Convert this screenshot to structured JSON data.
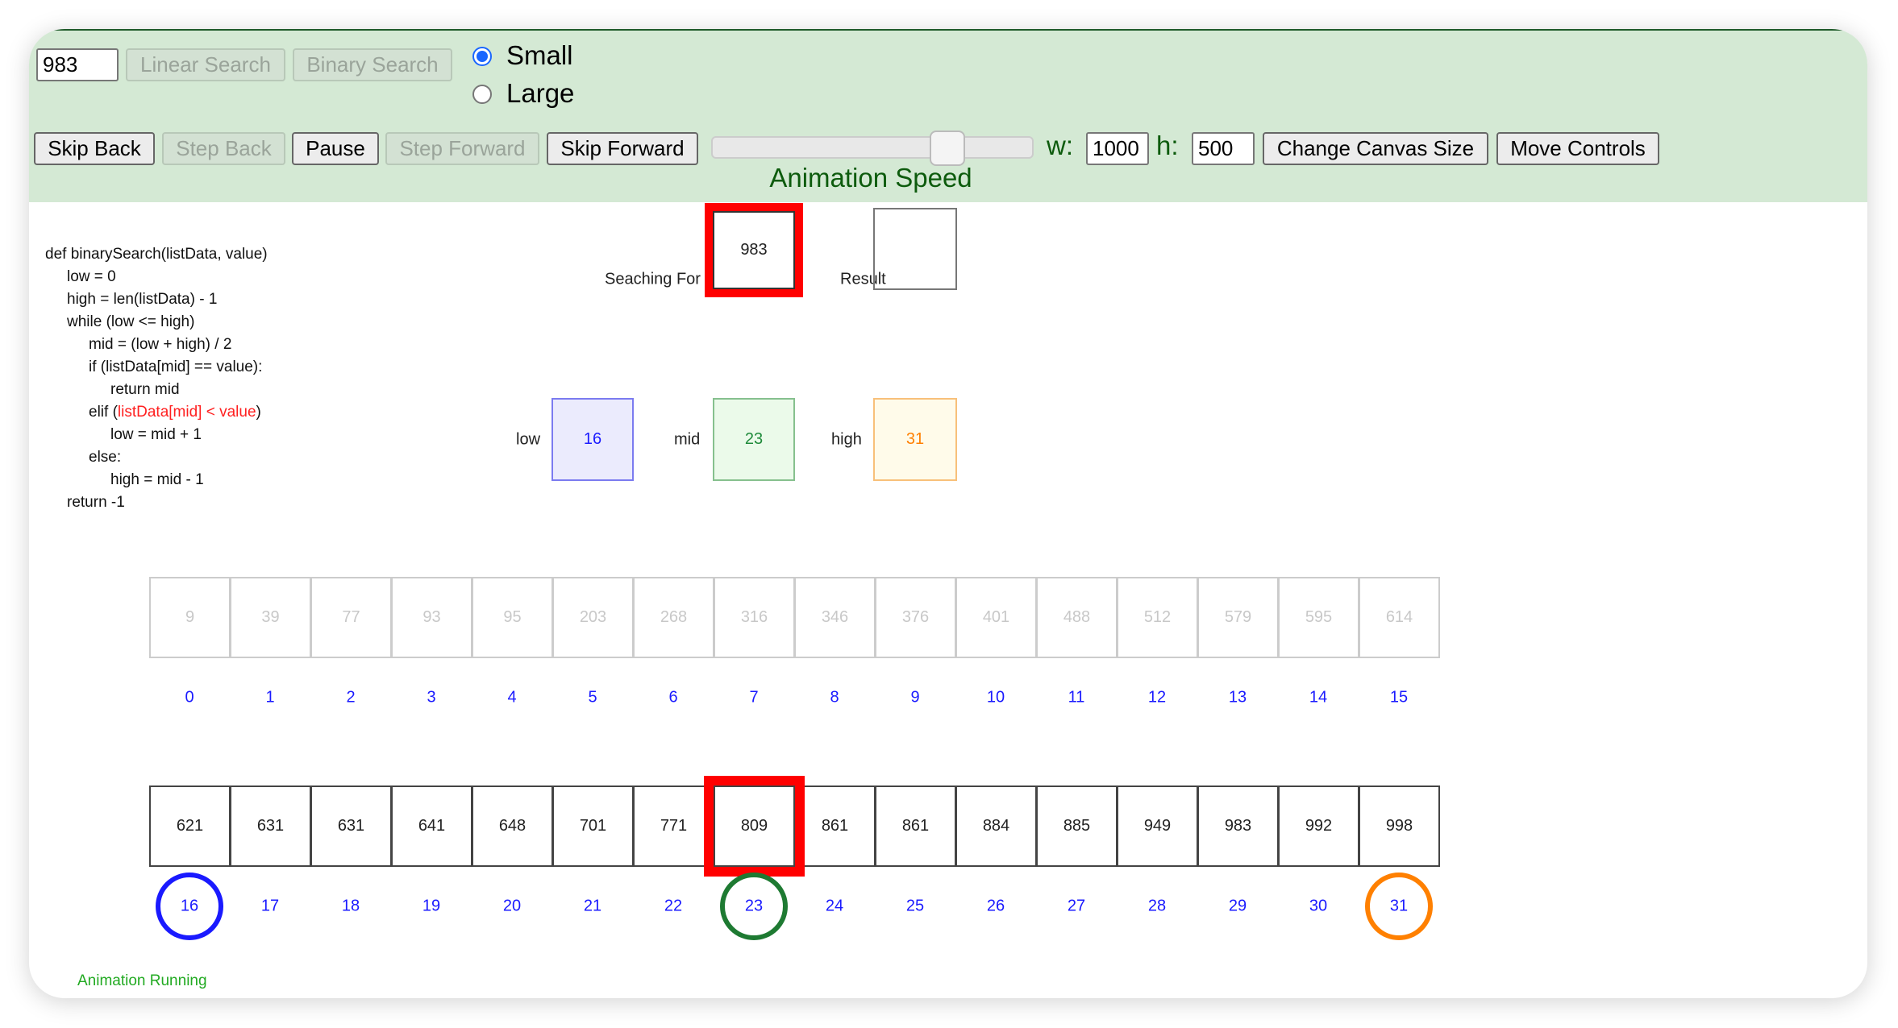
{
  "controls": {
    "search_value": "983",
    "linear_search": "Linear Search",
    "binary_search": "Binary Search",
    "size_options": [
      {
        "label": "Small",
        "selected": true
      },
      {
        "label": "Large",
        "selected": false
      }
    ],
    "skip_back": "Skip Back",
    "step_back": "Step Back",
    "pause": "Pause",
    "step_forward": "Step Forward",
    "skip_forward": "Skip Forward",
    "animation_speed_label": "Animation Speed",
    "animation_speed_fraction": 0.76,
    "w_label": "w:",
    "w_value": "1000",
    "h_label": "h:",
    "h_value": "500",
    "change_canvas_size": "Change Canvas Size",
    "move_controls": "Move Controls"
  },
  "code": {
    "lines": [
      {
        "indent": 0,
        "text": "def binarySearch(listData, value)"
      },
      {
        "indent": 1,
        "text": "low = 0"
      },
      {
        "indent": 1,
        "text": "high = len(listData) - 1"
      },
      {
        "indent": 1,
        "text": "while (low <= high)"
      },
      {
        "indent": 2,
        "text": "mid = (low + high) / 2"
      },
      {
        "indent": 2,
        "text": "if (listData[mid] == value):"
      },
      {
        "indent": 3,
        "text": "return mid"
      },
      {
        "indent": 2,
        "text": "elif (",
        "highlight": "listData[mid] < value",
        "after": ")"
      },
      {
        "indent": 3,
        "text": "low = mid + 1"
      },
      {
        "indent": 2,
        "text": "else:"
      },
      {
        "indent": 3,
        "text": "high = mid - 1"
      },
      {
        "indent": 1,
        "text": "return -1"
      }
    ],
    "highlight_color": "#ff2020"
  },
  "search": {
    "searching_for_label": "Seaching For",
    "searching_for_value": "983",
    "result_label": "Result",
    "result_value": ""
  },
  "pointers": {
    "low_label": "low",
    "low_value": "16",
    "low_color": "#1a1aff",
    "mid_label": "mid",
    "mid_value": "23",
    "mid_color": "#1e7a32",
    "high_label": "high",
    "high_value": "31",
    "high_color": "#ff8000"
  },
  "array": {
    "values": [
      9,
      39,
      77,
      93,
      95,
      203,
      268,
      316,
      346,
      376,
      401,
      488,
      512,
      579,
      595,
      614,
      621,
      631,
      631,
      641,
      648,
      701,
      771,
      809,
      861,
      861,
      884,
      885,
      949,
      983,
      992,
      998
    ],
    "inactive_below": 16,
    "highlight_index": 23,
    "low_index": 16,
    "mid_index": 23,
    "high_index": 31
  },
  "status": "Animation Running"
}
